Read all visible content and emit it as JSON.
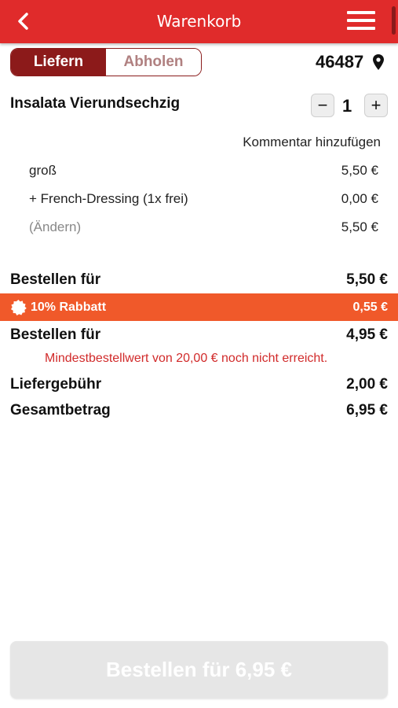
{
  "header": {
    "title": "Warenkorb",
    "back_icon": "chevron-left-icon",
    "menu_icon": "hamburger-menu-icon",
    "bar_color": "#e02b2b"
  },
  "delivery_toggle": {
    "options": [
      "Liefern",
      "Abholen"
    ],
    "selected": "Liefern"
  },
  "location": {
    "postal_code": "46487",
    "icon": "map-pin-icon"
  },
  "item": {
    "name": "Insalata Vierundsechzig",
    "quantity": "1",
    "minus_label": "−",
    "plus_label": "+",
    "comment_link": "Kommentar hinzufügen",
    "options": [
      {
        "label": "groß",
        "price": "5,50 €"
      },
      {
        "label": "+ French-Dressing (1x frei)",
        "price": "0,00 €"
      },
      {
        "label": "(Ändern)",
        "price": "5,50 €"
      }
    ]
  },
  "summary": {
    "subtotal_label": "Bestellen für",
    "subtotal_value": "5,50 €",
    "discount_label": "10% Rabbatt",
    "discount_value": "0,55 €",
    "discount_color": "#f0592a",
    "after_discount_label": "Bestellen für",
    "after_discount_value": "4,95 €",
    "warning": "Mindestbestellwert von 20,00 € noch nicht erreicht.",
    "delivery_fee_label": "Liefergebühr",
    "delivery_fee_value": "2,00 €",
    "total_label": "Gesamtbetrag",
    "total_value": "6,95 €"
  },
  "order_button": {
    "label": "Bestellen für 6,95 €",
    "enabled": false
  }
}
